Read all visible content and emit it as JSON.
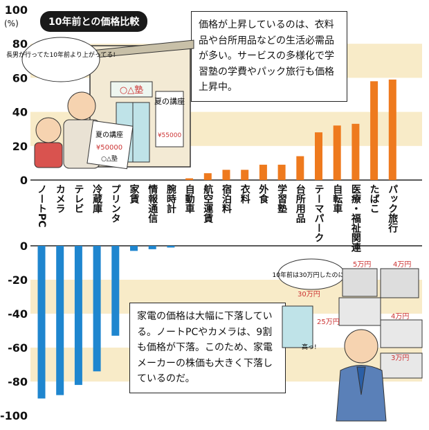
{
  "chart_data": {
    "type": "bar",
    "title": "10年前との価格比較",
    "unit": "(%)",
    "ylim": [
      -100,
      100
    ],
    "yticks": [
      100,
      80,
      60,
      40,
      20,
      0,
      -20,
      -40,
      -60,
      -80,
      -100
    ],
    "categories": [
      "ノートPC",
      "カメラ",
      "テレビ",
      "冷蔵庫",
      "プリンタ",
      "家賃",
      "情報通信",
      "腕時計",
      "自動車",
      "航空運賃",
      "宿泊料",
      "衣料",
      "外食",
      "学習塾",
      "台所用品",
      "テーマパーク",
      "自転車",
      "医療・福祉関連",
      "たばこ",
      "パック旅行"
    ],
    "values": [
      -90,
      -88,
      -82,
      -74,
      -53,
      -3,
      -2,
      -1,
      1,
      4,
      6,
      6,
      9,
      9,
      14,
      28,
      32,
      33,
      58,
      59
    ],
    "colors": {
      "increase": "#ee7a1e",
      "decrease": "#1f86cf",
      "band": "#f8ebc8"
    }
  },
  "notes": {
    "top": "価格が上昇しているのは、衣料品や台所用品などの生活必需品が多い。サービスの多様化で学習塾の学費やパック旅行も価格上昇中。",
    "bottom": "家電の価格は大幅に下落している。ノートPCやカメラは、9割も価格が下落。このため、家電メーカーの株価も大きく下落しているのだ。"
  },
  "illustration_top": {
    "speech": "長男が行ってた10年前より上がってる!",
    "school_sign": "○△塾",
    "poster_title": "夏の講座",
    "poster_price": "¥55000",
    "flyer_title": "夏の講座",
    "flyer_price": "¥50000",
    "flyer_sign": "○△塾"
  },
  "illustration_bottom": {
    "speech": "10年前は30万円したのに…",
    "tags": [
      "30万円",
      "5万円",
      "4万円",
      "25万円",
      "4万円",
      "3万円"
    ],
    "exclaim": "高っ!"
  }
}
